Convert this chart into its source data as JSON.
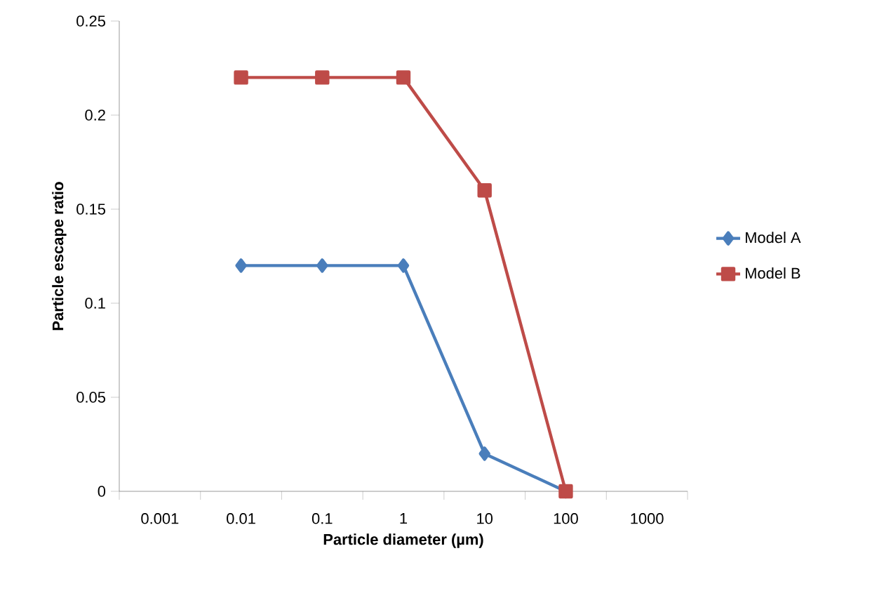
{
  "chart_data": {
    "type": "line",
    "xlabel": "Particle diameter (µm)",
    "ylabel": "Particle escape ratio",
    "categories": [
      "0.001",
      "0.01",
      "0.1",
      "1",
      "10",
      "100",
      "1000"
    ],
    "series": [
      {
        "name": "Model A",
        "color": "#4a7ebb",
        "marker": "diamond",
        "values": [
          null,
          0.12,
          0.12,
          0.12,
          0.02,
          0,
          null
        ]
      },
      {
        "name": "Model B",
        "color": "#be4b48",
        "marker": "square",
        "values": [
          null,
          0.22,
          0.22,
          0.22,
          0.16,
          0,
          null
        ]
      }
    ],
    "ylim": [
      0,
      0.25
    ],
    "yticks": [
      0,
      0.05,
      0.1,
      0.15,
      0.2,
      0.25
    ],
    "grid": false,
    "legend": "right",
    "line_style": "solid"
  }
}
